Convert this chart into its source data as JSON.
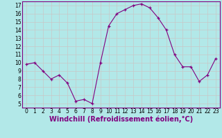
{
  "x": [
    0,
    1,
    2,
    3,
    4,
    5,
    6,
    7,
    8,
    9,
    10,
    11,
    12,
    13,
    14,
    15,
    16,
    17,
    18,
    19,
    20,
    21,
    22,
    23
  ],
  "y": [
    9.8,
    10.0,
    9.0,
    8.0,
    8.5,
    7.5,
    5.3,
    5.5,
    5.0,
    10.0,
    14.5,
    16.0,
    16.5,
    17.0,
    17.2,
    16.7,
    15.5,
    14.0,
    11.0,
    9.5,
    9.5,
    7.7,
    8.5,
    10.5
  ],
  "line_color": "#800080",
  "marker_color": "#800080",
  "bg_color": "#b2e8e8",
  "grid_color": "#c8c8c8",
  "xlabel": "Windchill (Refroidissement éolien,°C)",
  "xlabel_color": "#800080",
  "ylabel_ticks": [
    5,
    6,
    7,
    8,
    9,
    10,
    11,
    12,
    13,
    14,
    15,
    16,
    17
  ],
  "xlabel_ticks": [
    0,
    1,
    2,
    3,
    4,
    5,
    6,
    7,
    8,
    9,
    10,
    11,
    12,
    13,
    14,
    15,
    16,
    17,
    18,
    19,
    20,
    21,
    22,
    23
  ],
  "ylim": [
    4.5,
    17.5
  ],
  "xlim": [
    -0.5,
    23.5
  ],
  "tick_fontsize": 5.5,
  "xlabel_fontsize": 7.0
}
